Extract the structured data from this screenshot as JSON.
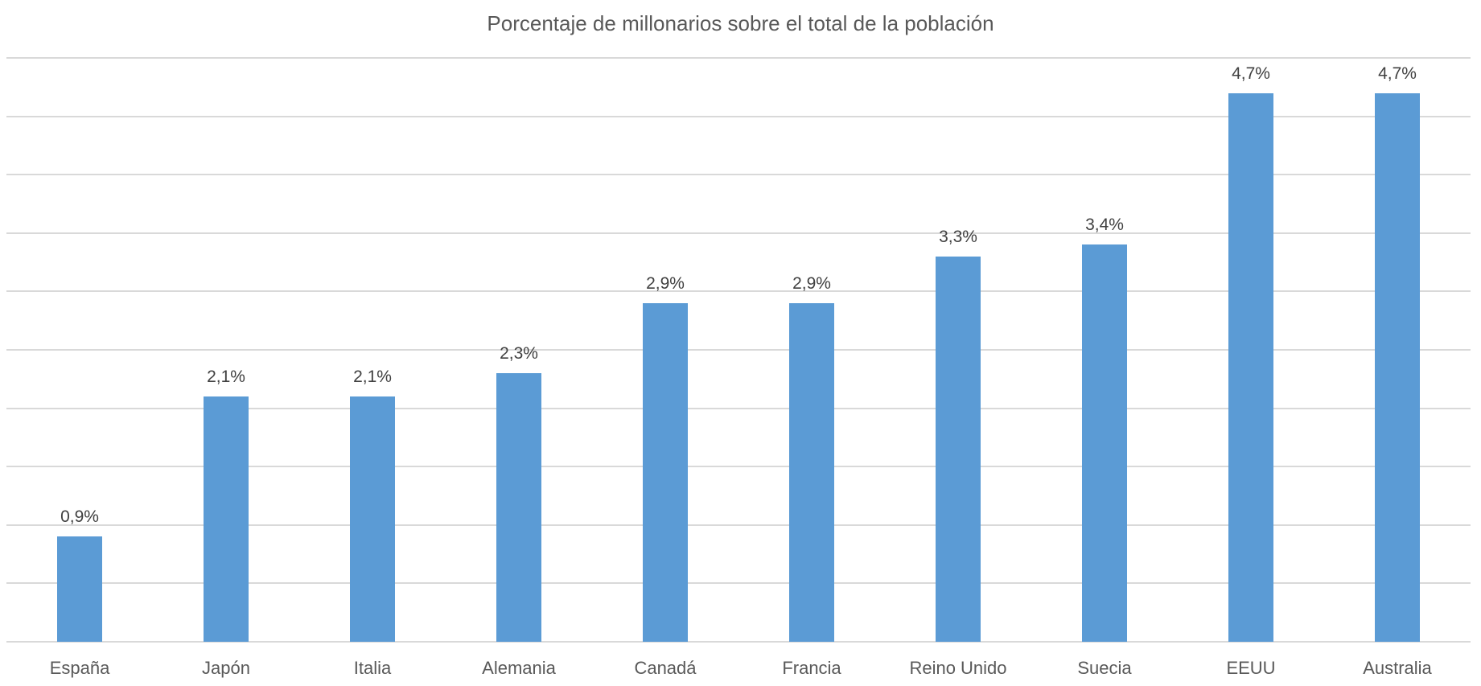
{
  "chart_data": {
    "type": "bar",
    "title": "Porcentaje de millonarios sobre el total de la población",
    "categories": [
      "España",
      "Japón",
      "Italia",
      "Alemania",
      "Canadá",
      "Francia",
      "Reino Unido",
      "Suecia",
      "EEUU",
      "Australia"
    ],
    "values": [
      0.9,
      2.1,
      2.1,
      2.3,
      2.9,
      2.9,
      3.3,
      3.4,
      4.7,
      4.7
    ],
    "data_labels": [
      "0,9%",
      "2,1%",
      "2,1%",
      "2,3%",
      "2,9%",
      "2,9%",
      "3,3%",
      "3,4%",
      "4,7%",
      "4,7%"
    ],
    "xlabel": "",
    "ylabel": "",
    "ylim": [
      0,
      5.0
    ],
    "ytick_step": 0.5,
    "y_axis_labels_visible": false,
    "grid": true,
    "legend": null,
    "bar_color": "#5b9bd5",
    "grid_color": "#d9d9d9"
  }
}
